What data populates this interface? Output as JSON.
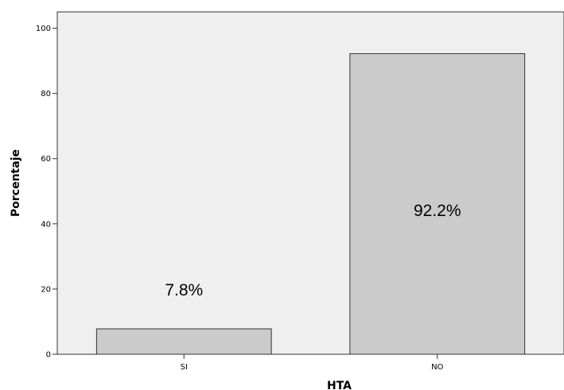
{
  "chart_data": {
    "type": "bar",
    "title": "",
    "xlabel": "HTA",
    "ylabel": "Porcentaje",
    "categories": [
      "SI",
      "NO"
    ],
    "values": [
      7.8,
      92.2
    ],
    "data_labels": [
      "7.8%",
      "92.2%"
    ],
    "ylim": [
      0,
      105
    ],
    "yticks": [
      0,
      20,
      40,
      60,
      80,
      100
    ],
    "grid": false,
    "legend": "none",
    "colors": {
      "plot_background": "#efefef",
      "bar_fill": "#cbcbcb",
      "bar_stroke": "#333333",
      "axis": "#333333"
    }
  }
}
